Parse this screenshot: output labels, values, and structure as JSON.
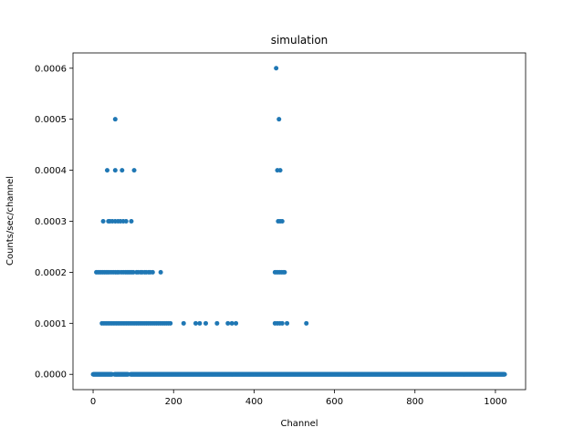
{
  "chart_data": {
    "type": "scatter",
    "title": "simulation",
    "xlabel": "Channel",
    "ylabel": "Counts/sec/channel",
    "xlim": [
      -50,
      1075
    ],
    "ylim": [
      -3e-05,
      0.00063
    ],
    "xticks": [
      0,
      200,
      400,
      600,
      800,
      1000
    ],
    "xtick_labels": [
      "0",
      "200",
      "400",
      "600",
      "800",
      "1000"
    ],
    "yticks": [
      0,
      0.0001,
      0.0002,
      0.0003,
      0.0004,
      0.0005,
      0.0006
    ],
    "ytick_labels": [
      "0.0000",
      "0.0001",
      "0.0002",
      "0.0003",
      "0.0004",
      "0.0005",
      "0.0006"
    ],
    "grid": false,
    "marker_color": "#1f77b4",
    "baseline": {
      "y": 0,
      "x_start": 0,
      "x_end": 1023,
      "gaps": [
        [
          48,
          52
        ],
        [
          88,
          92
        ]
      ]
    },
    "series": [
      {
        "points": [
          [
            455,
            0.0006
          ],
          [
            55,
            0.0005
          ],
          [
            462,
            0.0005
          ],
          [
            35,
            0.0004
          ],
          [
            55,
            0.0004
          ],
          [
            72,
            0.0004
          ],
          [
            102,
            0.0004
          ],
          [
            458,
            0.0004
          ],
          [
            465,
            0.0004
          ],
          [
            25,
            0.0003
          ],
          [
            38,
            0.0003
          ],
          [
            42,
            0.0003
          ],
          [
            48,
            0.0003
          ],
          [
            55,
            0.0003
          ],
          [
            62,
            0.0003
          ],
          [
            68,
            0.0003
          ],
          [
            75,
            0.0003
          ],
          [
            82,
            0.0003
          ],
          [
            95,
            0.0003
          ],
          [
            460,
            0.0003
          ],
          [
            465,
            0.0003
          ],
          [
            470,
            0.0003
          ],
          [
            8,
            0.0002
          ],
          [
            12,
            0.0002
          ],
          [
            16,
            0.0002
          ],
          [
            20,
            0.0002
          ],
          [
            24,
            0.0002
          ],
          [
            28,
            0.0002
          ],
          [
            32,
            0.0002
          ],
          [
            36,
            0.0002
          ],
          [
            40,
            0.0002
          ],
          [
            45,
            0.0002
          ],
          [
            50,
            0.0002
          ],
          [
            55,
            0.0002
          ],
          [
            60,
            0.0002
          ],
          [
            64,
            0.0002
          ],
          [
            70,
            0.0002
          ],
          [
            75,
            0.0002
          ],
          [
            80,
            0.0002
          ],
          [
            84,
            0.0002
          ],
          [
            88,
            0.0002
          ],
          [
            92,
            0.0002
          ],
          [
            96,
            0.0002
          ],
          [
            100,
            0.0002
          ],
          [
            108,
            0.0002
          ],
          [
            112,
            0.0002
          ],
          [
            118,
            0.0002
          ],
          [
            122,
            0.0002
          ],
          [
            128,
            0.0002
          ],
          [
            132,
            0.0002
          ],
          [
            138,
            0.0002
          ],
          [
            142,
            0.0002
          ],
          [
            148,
            0.0002
          ],
          [
            168,
            0.0002
          ],
          [
            452,
            0.0002
          ],
          [
            456,
            0.0002
          ],
          [
            460,
            0.0002
          ],
          [
            464,
            0.0002
          ],
          [
            468,
            0.0002
          ],
          [
            472,
            0.0002
          ],
          [
            476,
            0.0002
          ],
          [
            22,
            0.0001
          ],
          [
            27,
            0.0001
          ],
          [
            32,
            0.0001
          ],
          [
            37,
            0.0001
          ],
          [
            42,
            0.0001
          ],
          [
            47,
            0.0001
          ],
          [
            52,
            0.0001
          ],
          [
            57,
            0.0001
          ],
          [
            62,
            0.0001
          ],
          [
            67,
            0.0001
          ],
          [
            72,
            0.0001
          ],
          [
            77,
            0.0001
          ],
          [
            82,
            0.0001
          ],
          [
            87,
            0.0001
          ],
          [
            92,
            0.0001
          ],
          [
            97,
            0.0001
          ],
          [
            102,
            0.0001
          ],
          [
            107,
            0.0001
          ],
          [
            112,
            0.0001
          ],
          [
            117,
            0.0001
          ],
          [
            122,
            0.0001
          ],
          [
            127,
            0.0001
          ],
          [
            132,
            0.0001
          ],
          [
            137,
            0.0001
          ],
          [
            142,
            0.0001
          ],
          [
            147,
            0.0001
          ],
          [
            152,
            0.0001
          ],
          [
            157,
            0.0001
          ],
          [
            162,
            0.0001
          ],
          [
            167,
            0.0001
          ],
          [
            172,
            0.0001
          ],
          [
            177,
            0.0001
          ],
          [
            182,
            0.0001
          ],
          [
            187,
            0.0001
          ],
          [
            192,
            0.0001
          ],
          [
            225,
            0.0001
          ],
          [
            255,
            0.0001
          ],
          [
            265,
            0.0001
          ],
          [
            280,
            0.0001
          ],
          [
            308,
            0.0001
          ],
          [
            335,
            0.0001
          ],
          [
            345,
            0.0001
          ],
          [
            355,
            0.0001
          ],
          [
            452,
            0.0001
          ],
          [
            458,
            0.0001
          ],
          [
            464,
            0.0001
          ],
          [
            470,
            0.0001
          ],
          [
            482,
            0.0001
          ],
          [
            530,
            0.0001
          ]
        ]
      }
    ]
  }
}
